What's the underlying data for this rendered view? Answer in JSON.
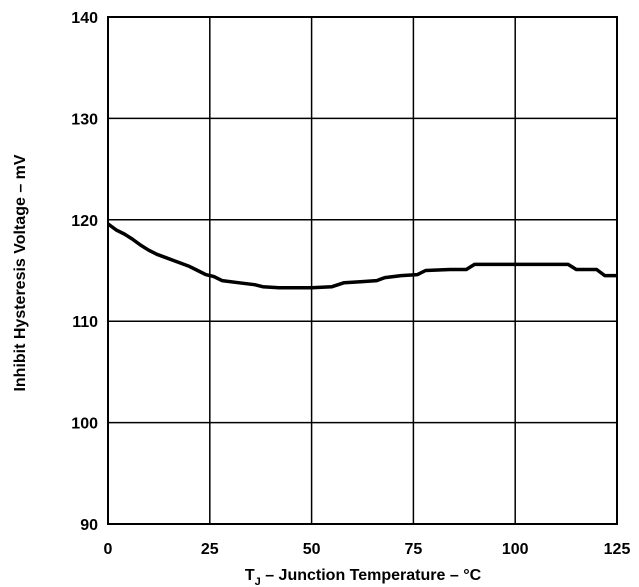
{
  "chart_data": {
    "type": "line",
    "title": "",
    "xlabel": {
      "prefix": "T",
      "subscript": "J",
      "rest": " – Junction Temperature – °C"
    },
    "ylabel": "Inhibit Hysteresis Voltage – mV",
    "xlim": [
      0,
      125
    ],
    "ylim": [
      90,
      140
    ],
    "x_ticks": [
      0,
      25,
      50,
      75,
      100,
      125
    ],
    "y_ticks": [
      90,
      100,
      110,
      120,
      130,
      140
    ],
    "grid": true,
    "series": [
      {
        "x": [
          0,
          2,
          4,
          6,
          8,
          10,
          12,
          14,
          16,
          18,
          20,
          22,
          24,
          26,
          28,
          32,
          36,
          38,
          42,
          46,
          50,
          55,
          58,
          62,
          66,
          68,
          72,
          76,
          78,
          84,
          88,
          90,
          95,
          100,
          105,
          110,
          113,
          115,
          120,
          122,
          125
        ],
        "y": [
          119.6,
          119.0,
          118.6,
          118.1,
          117.5,
          117.0,
          116.6,
          116.3,
          116.0,
          115.7,
          115.4,
          115.0,
          114.6,
          114.4,
          114.0,
          113.8,
          113.6,
          113.4,
          113.3,
          113.3,
          113.3,
          113.4,
          113.8,
          113.9,
          114.0,
          114.3,
          114.5,
          114.6,
          115.0,
          115.1,
          115.1,
          115.6,
          115.6,
          115.6,
          115.6,
          115.6,
          115.6,
          115.1,
          115.1,
          114.5,
          114.5
        ]
      }
    ]
  }
}
